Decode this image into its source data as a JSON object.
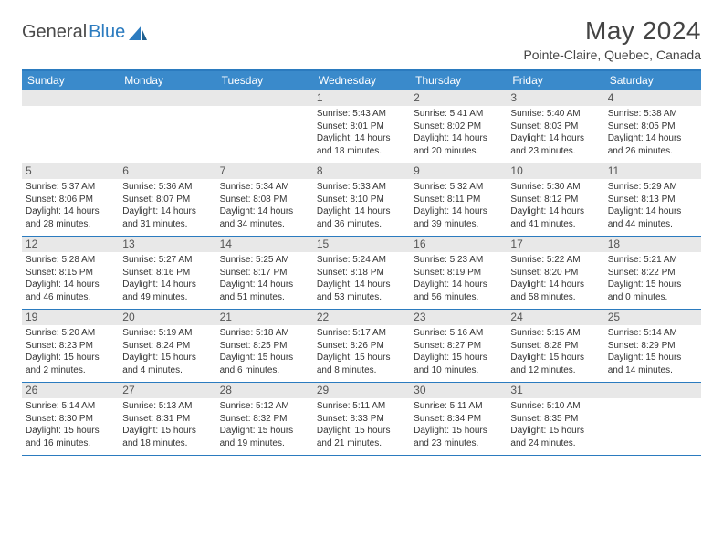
{
  "brand": {
    "name1": "General",
    "name2": "Blue"
  },
  "title": "May 2024",
  "location": "Pointe-Claire, Quebec, Canada",
  "colors": {
    "header_bar": "#3a8acb",
    "border": "#2b7bbf",
    "daynum_bg": "#e8e8e8",
    "text": "#333333",
    "background": "#ffffff"
  },
  "daysOfWeek": [
    "Sunday",
    "Monday",
    "Tuesday",
    "Wednesday",
    "Thursday",
    "Friday",
    "Saturday"
  ],
  "weeks": [
    [
      {
        "n": "",
        "lines": []
      },
      {
        "n": "",
        "lines": []
      },
      {
        "n": "",
        "lines": []
      },
      {
        "n": "1",
        "lines": [
          "Sunrise: 5:43 AM",
          "Sunset: 8:01 PM",
          "Daylight: 14 hours",
          "and 18 minutes."
        ]
      },
      {
        "n": "2",
        "lines": [
          "Sunrise: 5:41 AM",
          "Sunset: 8:02 PM",
          "Daylight: 14 hours",
          "and 20 minutes."
        ]
      },
      {
        "n": "3",
        "lines": [
          "Sunrise: 5:40 AM",
          "Sunset: 8:03 PM",
          "Daylight: 14 hours",
          "and 23 minutes."
        ]
      },
      {
        "n": "4",
        "lines": [
          "Sunrise: 5:38 AM",
          "Sunset: 8:05 PM",
          "Daylight: 14 hours",
          "and 26 minutes."
        ]
      }
    ],
    [
      {
        "n": "5",
        "lines": [
          "Sunrise: 5:37 AM",
          "Sunset: 8:06 PM",
          "Daylight: 14 hours",
          "and 28 minutes."
        ]
      },
      {
        "n": "6",
        "lines": [
          "Sunrise: 5:36 AM",
          "Sunset: 8:07 PM",
          "Daylight: 14 hours",
          "and 31 minutes."
        ]
      },
      {
        "n": "7",
        "lines": [
          "Sunrise: 5:34 AM",
          "Sunset: 8:08 PM",
          "Daylight: 14 hours",
          "and 34 minutes."
        ]
      },
      {
        "n": "8",
        "lines": [
          "Sunrise: 5:33 AM",
          "Sunset: 8:10 PM",
          "Daylight: 14 hours",
          "and 36 minutes."
        ]
      },
      {
        "n": "9",
        "lines": [
          "Sunrise: 5:32 AM",
          "Sunset: 8:11 PM",
          "Daylight: 14 hours",
          "and 39 minutes."
        ]
      },
      {
        "n": "10",
        "lines": [
          "Sunrise: 5:30 AM",
          "Sunset: 8:12 PM",
          "Daylight: 14 hours",
          "and 41 minutes."
        ]
      },
      {
        "n": "11",
        "lines": [
          "Sunrise: 5:29 AM",
          "Sunset: 8:13 PM",
          "Daylight: 14 hours",
          "and 44 minutes."
        ]
      }
    ],
    [
      {
        "n": "12",
        "lines": [
          "Sunrise: 5:28 AM",
          "Sunset: 8:15 PM",
          "Daylight: 14 hours",
          "and 46 minutes."
        ]
      },
      {
        "n": "13",
        "lines": [
          "Sunrise: 5:27 AM",
          "Sunset: 8:16 PM",
          "Daylight: 14 hours",
          "and 49 minutes."
        ]
      },
      {
        "n": "14",
        "lines": [
          "Sunrise: 5:25 AM",
          "Sunset: 8:17 PM",
          "Daylight: 14 hours",
          "and 51 minutes."
        ]
      },
      {
        "n": "15",
        "lines": [
          "Sunrise: 5:24 AM",
          "Sunset: 8:18 PM",
          "Daylight: 14 hours",
          "and 53 minutes."
        ]
      },
      {
        "n": "16",
        "lines": [
          "Sunrise: 5:23 AM",
          "Sunset: 8:19 PM",
          "Daylight: 14 hours",
          "and 56 minutes."
        ]
      },
      {
        "n": "17",
        "lines": [
          "Sunrise: 5:22 AM",
          "Sunset: 8:20 PM",
          "Daylight: 14 hours",
          "and 58 minutes."
        ]
      },
      {
        "n": "18",
        "lines": [
          "Sunrise: 5:21 AM",
          "Sunset: 8:22 PM",
          "Daylight: 15 hours",
          "and 0 minutes."
        ]
      }
    ],
    [
      {
        "n": "19",
        "lines": [
          "Sunrise: 5:20 AM",
          "Sunset: 8:23 PM",
          "Daylight: 15 hours",
          "and 2 minutes."
        ]
      },
      {
        "n": "20",
        "lines": [
          "Sunrise: 5:19 AM",
          "Sunset: 8:24 PM",
          "Daylight: 15 hours",
          "and 4 minutes."
        ]
      },
      {
        "n": "21",
        "lines": [
          "Sunrise: 5:18 AM",
          "Sunset: 8:25 PM",
          "Daylight: 15 hours",
          "and 6 minutes."
        ]
      },
      {
        "n": "22",
        "lines": [
          "Sunrise: 5:17 AM",
          "Sunset: 8:26 PM",
          "Daylight: 15 hours",
          "and 8 minutes."
        ]
      },
      {
        "n": "23",
        "lines": [
          "Sunrise: 5:16 AM",
          "Sunset: 8:27 PM",
          "Daylight: 15 hours",
          "and 10 minutes."
        ]
      },
      {
        "n": "24",
        "lines": [
          "Sunrise: 5:15 AM",
          "Sunset: 8:28 PM",
          "Daylight: 15 hours",
          "and 12 minutes."
        ]
      },
      {
        "n": "25",
        "lines": [
          "Sunrise: 5:14 AM",
          "Sunset: 8:29 PM",
          "Daylight: 15 hours",
          "and 14 minutes."
        ]
      }
    ],
    [
      {
        "n": "26",
        "lines": [
          "Sunrise: 5:14 AM",
          "Sunset: 8:30 PM",
          "Daylight: 15 hours",
          "and 16 minutes."
        ]
      },
      {
        "n": "27",
        "lines": [
          "Sunrise: 5:13 AM",
          "Sunset: 8:31 PM",
          "Daylight: 15 hours",
          "and 18 minutes."
        ]
      },
      {
        "n": "28",
        "lines": [
          "Sunrise: 5:12 AM",
          "Sunset: 8:32 PM",
          "Daylight: 15 hours",
          "and 19 minutes."
        ]
      },
      {
        "n": "29",
        "lines": [
          "Sunrise: 5:11 AM",
          "Sunset: 8:33 PM",
          "Daylight: 15 hours",
          "and 21 minutes."
        ]
      },
      {
        "n": "30",
        "lines": [
          "Sunrise: 5:11 AM",
          "Sunset: 8:34 PM",
          "Daylight: 15 hours",
          "and 23 minutes."
        ]
      },
      {
        "n": "31",
        "lines": [
          "Sunrise: 5:10 AM",
          "Sunset: 8:35 PM",
          "Daylight: 15 hours",
          "and 24 minutes."
        ]
      },
      {
        "n": "",
        "lines": []
      }
    ]
  ]
}
